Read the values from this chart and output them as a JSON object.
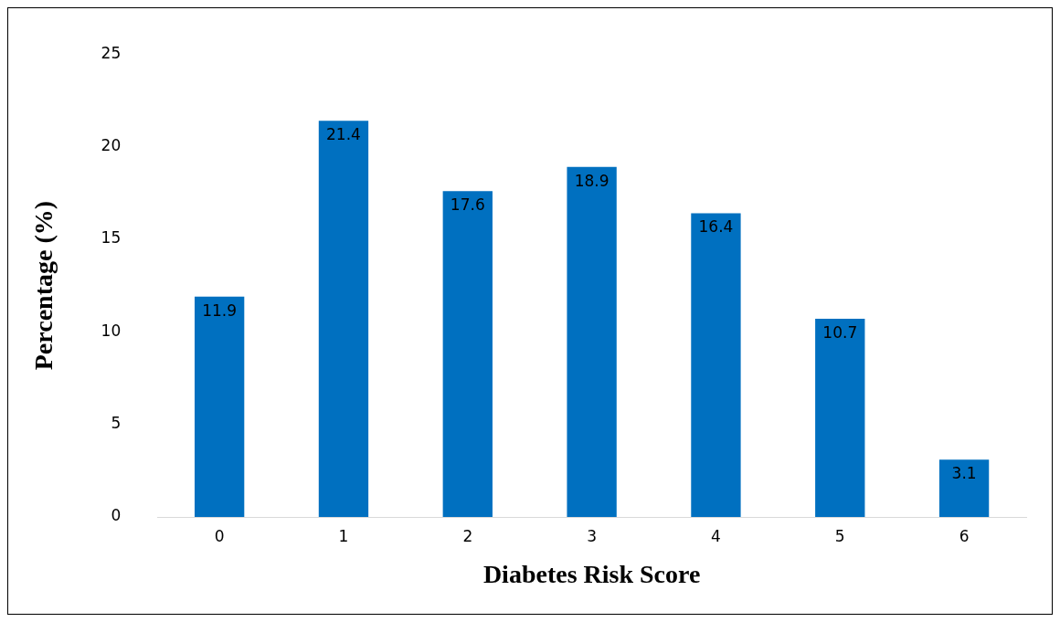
{
  "chart_data": {
    "type": "bar",
    "xlabel": "Diabetes Risk Score",
    "ylabel": "Percentage (%)",
    "categories": [
      "0",
      "1",
      "2",
      "3",
      "4",
      "5",
      "6"
    ],
    "values": [
      11.9,
      21.4,
      17.6,
      18.9,
      16.4,
      10.7,
      3.1
    ],
    "color": "#0070c0",
    "ylim": [
      0,
      25
    ],
    "yticks": [
      0,
      5,
      10,
      15,
      20,
      25
    ],
    "grid": false,
    "legend": false,
    "data_labels": true
  }
}
